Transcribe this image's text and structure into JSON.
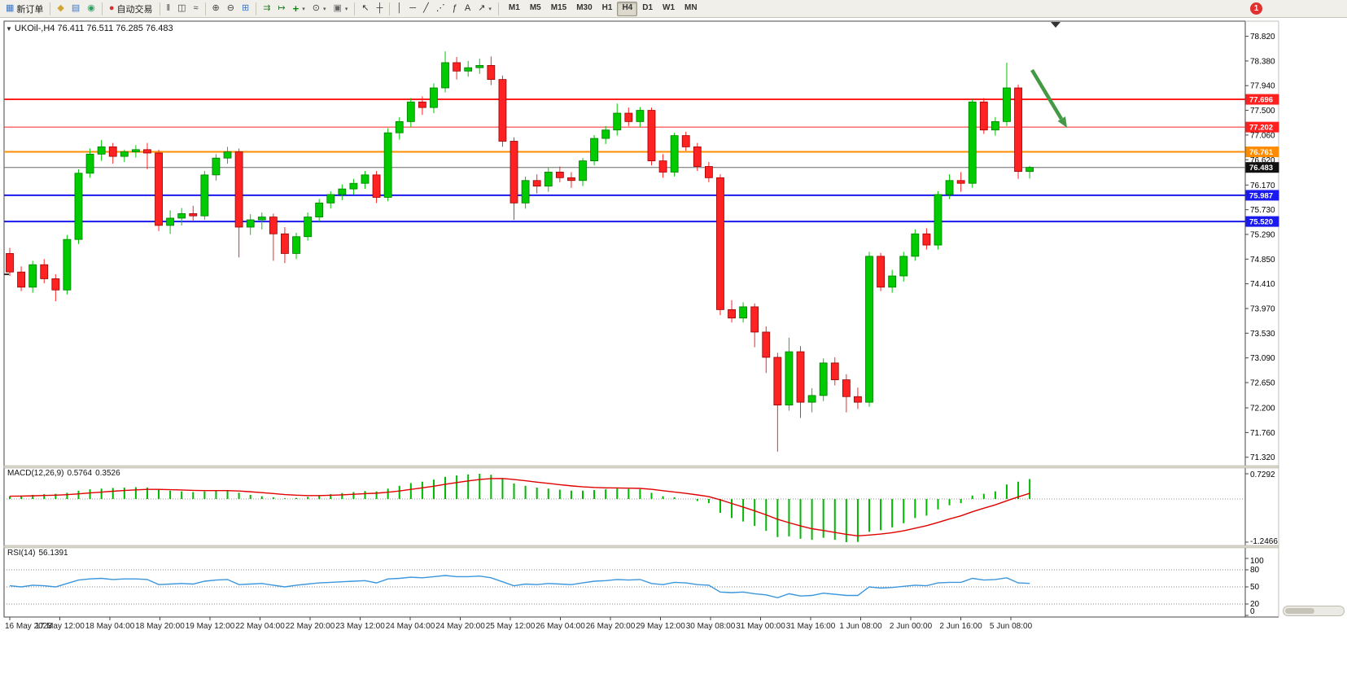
{
  "colors": {
    "up": "#00ca00",
    "up_stroke": "#007a00",
    "down": "#ff2222",
    "down_stroke": "#990000",
    "macd_hist": "#00b800",
    "macd_signal": "#e00000",
    "rsi_line": "#3a96dd",
    "arrow": "#449944"
  },
  "badge": {
    "label": "1"
  },
  "toolbar": {
    "items": [
      {
        "kind": "labelbtn",
        "name": "new-order-button",
        "icon": "new-order-icon",
        "glyph": "▦",
        "glyph_color": "#3c78c8",
        "label": "新订单"
      },
      {
        "kind": "sep"
      },
      {
        "kind": "btn",
        "name": "metaeditor-button",
        "icon": "metaeditor-icon",
        "glyph": "◆",
        "glyph_color": "#d2a534"
      },
      {
        "kind": "btn",
        "name": "market-watch-button",
        "icon": "market-watch-icon",
        "glyph": "▤",
        "glyph_color": "#3c78c8"
      },
      {
        "kind": "btn",
        "name": "terminal-button",
        "icon": "terminal-icon",
        "glyph": "◉",
        "glyph_color": "#2f9e62"
      },
      {
        "kind": "sep"
      },
      {
        "kind": "labelbtn",
        "name": "autotrading-button",
        "icon": "autotrading-icon",
        "glyph": "●",
        "glyph_color": "#d43030",
        "label": "自动交易"
      },
      {
        "kind": "sep"
      },
      {
        "kind": "btn",
        "name": "bar-chart-button",
        "icon": "bar-chart-icon",
        "glyph": "ǁ",
        "glyph_color": "#444"
      },
      {
        "kind": "btn",
        "name": "candlestick-chart-button",
        "icon": "candlestick-chart-icon",
        "glyph": "◫",
        "glyph_color": "#444"
      },
      {
        "kind": "btn",
        "name": "line-chart-button",
        "icon": "line-chart-icon",
        "glyph": "≈",
        "glyph_color": "#444"
      },
      {
        "kind": "sep"
      },
      {
        "kind": "btn",
        "name": "zoom-in-button",
        "icon": "zoom-in-icon",
        "glyph": "⊕",
        "glyph_color": "#444"
      },
      {
        "kind": "btn",
        "name": "zoom-out-button",
        "icon": "zoom-out-icon",
        "glyph": "⊖",
        "glyph_color": "#444"
      },
      {
        "kind": "btn",
        "name": "tile-windows-button",
        "icon": "tile-windows-icon",
        "glyph": "⊞",
        "glyph_color": "#3c78c8"
      },
      {
        "kind": "sep"
      },
      {
        "kind": "btn",
        "name": "auto-scroll-button",
        "icon": "auto-scroll-icon",
        "glyph": "⇉",
        "glyph_color": "#2f7d32"
      },
      {
        "kind": "btn",
        "name": "chart-shift-button",
        "icon": "chart-shift-icon",
        "glyph": "↦",
        "glyph_color": "#2f7d32"
      },
      {
        "kind": "btn",
        "name": "indicators-button",
        "icon": "indicators-add-icon",
        "glyph": "+",
        "glyph_color": "#009000",
        "bold": true,
        "caret": true
      },
      {
        "kind": "btn",
        "name": "periods-button",
        "icon": "clock-icon",
        "glyph": "⊙",
        "glyph_color": "#444",
        "caret": true
      },
      {
        "kind": "btn",
        "name": "templates-button",
        "icon": "template-icon",
        "glyph": "▣",
        "glyph_color": "#666",
        "caret": true
      },
      {
        "kind": "sep"
      },
      {
        "kind": "btn",
        "name": "cursor-button",
        "icon": "cursor-icon",
        "glyph": "↖",
        "glyph_color": "#333"
      },
      {
        "kind": "btn",
        "name": "crosshair-button",
        "icon": "crosshair-icon",
        "glyph": "┼",
        "glyph_color": "#333"
      },
      {
        "kind": "sep"
      },
      {
        "kind": "btn",
        "name": "vertical-line-button",
        "icon": "vertical-line-icon",
        "glyph": "│",
        "glyph_color": "#333"
      },
      {
        "kind": "btn",
        "name": "horizontal-line-button",
        "icon": "horizontal-line-icon",
        "glyph": "─",
        "glyph_color": "#333"
      },
      {
        "kind": "btn",
        "name": "trendline-button",
        "icon": "trendline-icon",
        "glyph": "╱",
        "glyph_color": "#333"
      },
      {
        "kind": "btn",
        "name": "channel-button",
        "icon": "channel-icon",
        "glyph": "⋰",
        "glyph_color": "#333"
      },
      {
        "kind": "btn",
        "name": "fibonacci-button",
        "icon": "fibonacci-icon",
        "glyph": "ƒ",
        "glyph_color": "#333"
      },
      {
        "kind": "btn",
        "name": "text-label-button",
        "icon": "text-icon",
        "glyph": "A",
        "glyph_color": "#333"
      },
      {
        "kind": "btn",
        "name": "arrows-button",
        "icon": "arrow-object-icon",
        "glyph": "↗",
        "glyph_color": "#333",
        "caret": true
      },
      {
        "kind": "sep"
      }
    ],
    "timeframes": {
      "labels": [
        "M1",
        "M5",
        "M15",
        "M30",
        "H1",
        "H4",
        "D1",
        "W1",
        "MN"
      ],
      "active": "H4"
    }
  },
  "chart": {
    "title": "UKOil-,H4 76.411 76.511 76.285 76.483",
    "menu_icon": "▼"
  },
  "macd": {
    "name": "MACD(12,26,9)",
    "main_value": "0.5764",
    "signal_value": "0.3526",
    "scale_max": "0.7292",
    "scale_min": "-1.2466"
  },
  "rsi": {
    "name": "RSI(14)",
    "value": "56.1391",
    "ticks": [
      {
        "v": 100,
        "label": "100"
      },
      {
        "v": 80,
        "label": "80"
      },
      {
        "v": 50,
        "label": "50"
      },
      {
        "v": 20,
        "label": "20"
      },
      {
        "v": 0,
        "label": "0"
      }
    ]
  },
  "chart_data": [
    {
      "type": "candlestick",
      "title": "UKOil-,H4",
      "timeframe": "H4",
      "ylim": [
        71.2,
        79.06
      ],
      "y_ticks": [
        "78.820",
        "78.380",
        "77.940",
        "77.500",
        "77.060",
        "76.620",
        "76.170",
        "75.730",
        "75.290",
        "74.850",
        "74.410",
        "73.970",
        "73.530",
        "73.090",
        "72.650",
        "72.200",
        "71.760",
        "71.320"
      ],
      "x_tick_labels": [
        "16 May 2023",
        "17 May 12:00",
        "18 May 04:00",
        "18 May 20:00",
        "19 May 12:00",
        "22 May 04:00",
        "22 May 20:00",
        "23 May 12:00",
        "24 May 04:00",
        "24 May 20:00",
        "25 May 12:00",
        "26 May 04:00",
        "26 May 20:00",
        "29 May 12:00",
        "30 May 08:00",
        "31 May 00:00",
        "31 May 16:00",
        "1 Jun 08:00",
        "2 Jun 00:00",
        "2 Jun 16:00",
        "5 Jun 08:00"
      ],
      "levels": [
        {
          "price": 77.696,
          "label": "77.696",
          "color": "#ff2020",
          "width": 2
        },
        {
          "price": 77.202,
          "label": "77.202",
          "color": "#ff2020",
          "width": 1
        },
        {
          "price": 76.761,
          "label": "76.761",
          "color": "#ff8c00",
          "width": 2
        },
        {
          "price": 75.987,
          "label": "75.987",
          "color": "#1a1aee",
          "width": 2
        },
        {
          "price": 75.52,
          "label": "75.520",
          "color": "#1a1aee",
          "width": 2
        }
      ],
      "current_price": {
        "value": 76.483,
        "label": "76.483",
        "line_color": "#6a6a6a",
        "tag_color": "#111111"
      },
      "ohlc": [
        [
          74.95,
          75.05,
          74.55,
          74.62
        ],
        [
          74.62,
          74.72,
          74.28,
          74.35
        ],
        [
          74.35,
          74.82,
          74.25,
          74.75
        ],
        [
          74.75,
          74.85,
          74.42,
          74.5
        ],
        [
          74.5,
          74.58,
          74.1,
          74.3
        ],
        [
          74.3,
          75.28,
          74.22,
          75.2
        ],
        [
          75.2,
          76.45,
          75.12,
          76.38
        ],
        [
          76.38,
          76.82,
          76.3,
          76.72
        ],
        [
          76.72,
          76.97,
          76.6,
          76.85
        ],
        [
          76.85,
          76.92,
          76.55,
          76.68
        ],
        [
          76.68,
          76.8,
          76.58,
          76.76
        ],
        [
          76.76,
          76.88,
          76.66,
          76.8
        ],
        [
          76.8,
          76.92,
          76.45,
          76.74
        ],
        [
          76.74,
          76.8,
          75.35,
          75.45
        ],
        [
          75.45,
          75.72,
          75.3,
          75.58
        ],
        [
          75.58,
          75.76,
          75.45,
          75.66
        ],
        [
          75.66,
          75.8,
          75.52,
          75.62
        ],
        [
          75.62,
          76.42,
          75.55,
          76.35
        ],
        [
          76.35,
          76.72,
          76.25,
          76.65
        ],
        [
          76.65,
          76.85,
          76.55,
          76.76
        ],
        [
          76.76,
          76.82,
          74.88,
          75.42
        ],
        [
          75.42,
          75.65,
          75.28,
          75.55
        ],
        [
          75.55,
          75.68,
          75.38,
          75.6
        ],
        [
          75.6,
          75.66,
          74.82,
          75.3
        ],
        [
          75.3,
          75.42,
          74.78,
          74.95
        ],
        [
          74.95,
          75.32,
          74.85,
          75.25
        ],
        [
          75.25,
          75.68,
          75.18,
          75.6
        ],
        [
          75.6,
          75.92,
          75.52,
          75.85
        ],
        [
          75.85,
          76.06,
          75.75,
          76.0
        ],
        [
          76.0,
          76.18,
          75.9,
          76.1
        ],
        [
          76.1,
          76.28,
          76.0,
          76.2
        ],
        [
          76.2,
          76.42,
          76.1,
          76.35
        ],
        [
          76.35,
          76.42,
          75.85,
          75.95
        ],
        [
          75.95,
          77.18,
          75.88,
          77.1
        ],
        [
          77.1,
          77.38,
          76.98,
          77.3
        ],
        [
          77.3,
          77.72,
          77.2,
          77.65
        ],
        [
          77.65,
          77.75,
          77.42,
          77.55
        ],
        [
          77.55,
          77.98,
          77.45,
          77.9
        ],
        [
          77.9,
          78.55,
          77.82,
          78.35
        ],
        [
          78.35,
          78.45,
          78.05,
          78.2
        ],
        [
          78.2,
          78.38,
          78.1,
          78.26
        ],
        [
          78.26,
          78.42,
          78.15,
          78.3
        ],
        [
          78.3,
          78.46,
          77.95,
          78.05
        ],
        [
          78.05,
          78.12,
          76.85,
          76.95
        ],
        [
          76.95,
          77.02,
          75.55,
          75.85
        ],
        [
          75.85,
          76.32,
          75.75,
          76.25
        ],
        [
          76.25,
          76.36,
          76.02,
          76.15
        ],
        [
          76.15,
          76.48,
          76.05,
          76.4
        ],
        [
          76.4,
          76.5,
          76.22,
          76.3
        ],
        [
          76.3,
          76.4,
          76.12,
          76.25
        ],
        [
          76.25,
          76.65,
          76.15,
          76.6
        ],
        [
          76.6,
          77.06,
          76.52,
          77.0
        ],
        [
          77.0,
          77.22,
          76.9,
          77.15
        ],
        [
          77.15,
          77.62,
          77.05,
          77.45
        ],
        [
          77.45,
          77.55,
          77.22,
          77.3
        ],
        [
          77.3,
          77.56,
          77.2,
          77.5
        ],
        [
          77.5,
          77.55,
          76.52,
          76.6
        ],
        [
          76.6,
          76.72,
          76.3,
          76.4
        ],
        [
          76.4,
          77.1,
          76.32,
          77.05
        ],
        [
          77.05,
          77.12,
          76.78,
          76.85
        ],
        [
          76.85,
          76.92,
          76.42,
          76.5
        ],
        [
          76.5,
          76.58,
          76.22,
          76.3
        ],
        [
          76.3,
          76.36,
          73.85,
          73.95
        ],
        [
          73.95,
          74.12,
          73.72,
          73.8
        ],
        [
          73.8,
          74.08,
          73.72,
          74.0
        ],
        [
          74.0,
          74.06,
          73.28,
          73.55
        ],
        [
          73.55,
          73.65,
          72.82,
          73.1
        ],
        [
          73.1,
          73.18,
          71.42,
          72.25
        ],
        [
          72.25,
          73.45,
          72.15,
          73.2
        ],
        [
          73.2,
          73.3,
          72.02,
          72.3
        ],
        [
          72.3,
          72.55,
          72.12,
          72.42
        ],
        [
          72.42,
          73.08,
          72.32,
          73.0
        ],
        [
          73.0,
          73.1,
          72.6,
          72.7
        ],
        [
          72.7,
          72.8,
          72.12,
          72.4
        ],
        [
          72.4,
          72.56,
          72.18,
          72.3
        ],
        [
          72.3,
          74.98,
          72.22,
          74.9
        ],
        [
          74.9,
          74.96,
          74.28,
          74.35
        ],
        [
          74.35,
          74.66,
          74.25,
          74.55
        ],
        [
          74.55,
          74.98,
          74.45,
          74.9
        ],
        [
          74.9,
          75.38,
          74.82,
          75.3
        ],
        [
          75.3,
          75.4,
          75.02,
          75.1
        ],
        [
          75.1,
          76.06,
          75.02,
          76.0
        ],
        [
          76.0,
          76.36,
          75.92,
          76.25
        ],
        [
          76.25,
          76.4,
          76.05,
          76.2
        ],
        [
          76.2,
          77.7,
          76.12,
          77.65
        ],
        [
          77.65,
          77.72,
          77.08,
          77.15
        ],
        [
          77.15,
          77.38,
          77.05,
          77.3
        ],
        [
          77.3,
          78.35,
          77.22,
          77.9
        ],
        [
          77.9,
          77.96,
          76.28,
          76.411
        ],
        [
          76.411,
          76.511,
          76.285,
          76.483
        ]
      ]
    },
    {
      "type": "bar",
      "name": "MACD(12,26,9)",
      "ylim": [
        -1.2466,
        0.7292
      ],
      "current_main": 0.5764,
      "current_signal": 0.3526,
      "signal_note": "signal line = EMA9 of values",
      "values": [
        0.08,
        0.1,
        0.12,
        0.14,
        0.15,
        0.18,
        0.24,
        0.28,
        0.3,
        0.32,
        0.33,
        0.34,
        0.33,
        0.28,
        0.24,
        0.22,
        0.2,
        0.22,
        0.24,
        0.25,
        0.18,
        0.12,
        0.08,
        0.05,
        0.02,
        0.03,
        0.06,
        0.1,
        0.14,
        0.17,
        0.2,
        0.23,
        0.22,
        0.3,
        0.38,
        0.46,
        0.5,
        0.56,
        0.64,
        0.68,
        0.71,
        0.7292,
        0.7,
        0.6,
        0.45,
        0.38,
        0.33,
        0.3,
        0.27,
        0.24,
        0.24,
        0.26,
        0.28,
        0.3,
        0.29,
        0.28,
        0.18,
        0.08,
        0.05,
        0.0,
        -0.06,
        -0.12,
        -0.4,
        -0.55,
        -0.65,
        -0.78,
        -0.92,
        -1.1,
        -1.08,
        -1.15,
        -1.18,
        -1.12,
        -1.18,
        -1.2466,
        -1.24,
        -0.95,
        -0.9,
        -0.82,
        -0.7,
        -0.55,
        -0.48,
        -0.3,
        -0.18,
        -0.12,
        0.1,
        0.15,
        0.22,
        0.42,
        0.5,
        0.5764
      ]
    },
    {
      "type": "line",
      "name": "RSI(14)",
      "ylim": [
        0,
        100
      ],
      "levels": [
        80,
        50,
        20
      ],
      "current": 56.1391,
      "values": [
        52,
        50,
        53,
        52,
        50,
        56,
        62,
        64,
        65,
        63,
        64,
        64,
        63,
        54,
        55,
        56,
        55,
        60,
        62,
        63,
        54,
        55,
        56,
        53,
        50,
        53,
        55,
        57,
        58,
        59,
        60,
        61,
        57,
        64,
        65,
        67,
        66,
        68,
        70,
        68,
        68,
        69,
        66,
        59,
        52,
        55,
        54,
        56,
        55,
        54,
        57,
        60,
        61,
        63,
        62,
        63,
        56,
        54,
        58,
        57,
        54,
        53,
        41,
        40,
        41,
        38,
        36,
        31,
        38,
        34,
        35,
        39,
        37,
        35,
        35,
        50,
        48,
        49,
        51,
        53,
        52,
        57,
        58,
        58,
        65,
        62,
        63,
        66,
        57,
        56.1
      ]
    }
  ]
}
